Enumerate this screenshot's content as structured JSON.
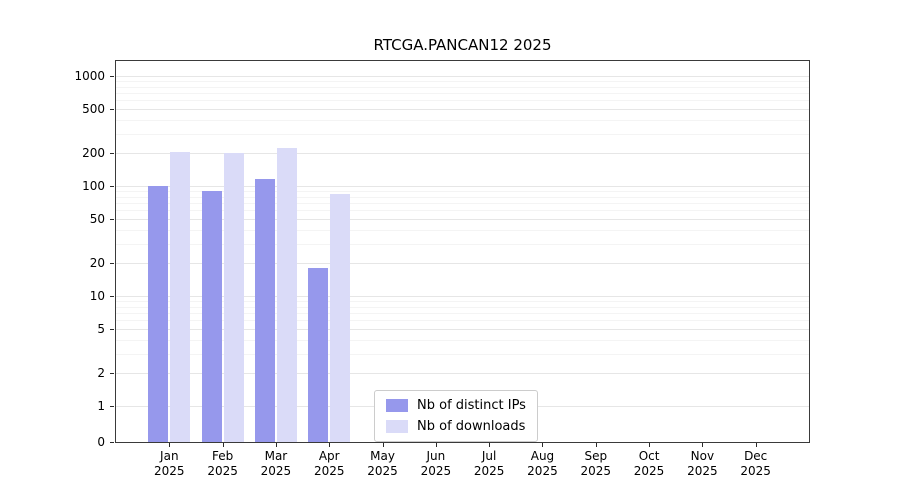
{
  "chart_data": {
    "type": "bar",
    "title": "RTCGA.PANCAN12 2025",
    "categories": [
      "Jan",
      "Feb",
      "Mar",
      "Apr",
      "May",
      "Jun",
      "Jul",
      "Aug",
      "Sep",
      "Oct",
      "Nov",
      "Dec"
    ],
    "year": "2025",
    "series": [
      {
        "name": "Nb of distinct IPs",
        "color": "#9698ec",
        "values": [
          100,
          90,
          115,
          18,
          0,
          0,
          0,
          0,
          0,
          0,
          0,
          0
        ]
      },
      {
        "name": "Nb of downloads",
        "color": "#dadbf8",
        "values": [
          205,
          198,
          220,
          85,
          0,
          0,
          0,
          0,
          0,
          0,
          0,
          0
        ]
      }
    ],
    "yscale": "symlog",
    "yticks": [
      0,
      1,
      2,
      5,
      10,
      20,
      50,
      100,
      200,
      500,
      1000
    ],
    "minor_gridlines": [
      3,
      4,
      6,
      7,
      8,
      9,
      30,
      40,
      60,
      70,
      80,
      90,
      300,
      400,
      600,
      700,
      800,
      900
    ],
    "ylim": [
      0,
      1300
    ],
    "xlabel": "",
    "ylabel": "",
    "grid": true,
    "legend": {
      "position": "lower center",
      "entries": [
        "Nb of distinct IPs",
        "Nb of downloads"
      ]
    }
  }
}
